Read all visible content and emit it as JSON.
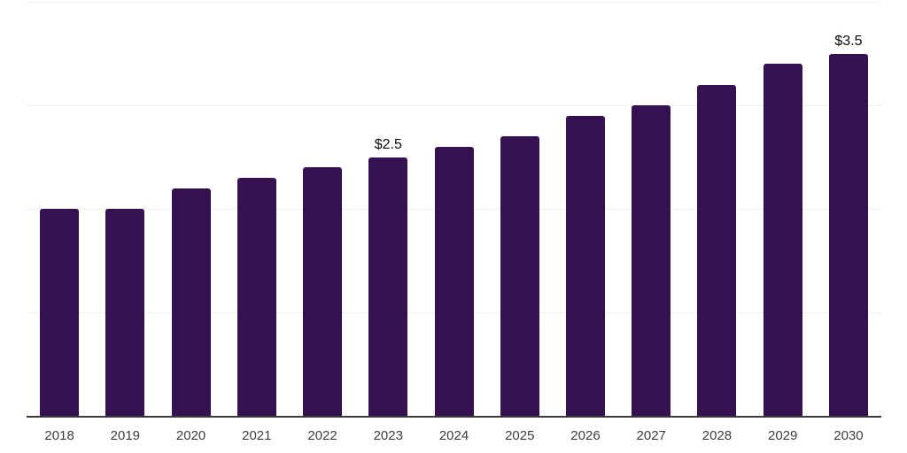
{
  "chart_data": {
    "type": "bar",
    "title": "",
    "xlabel": "",
    "ylabel": "",
    "categories": [
      "2018",
      "2019",
      "2020",
      "2021",
      "2022",
      "2023",
      "2024",
      "2025",
      "2026",
      "2027",
      "2028",
      "2029",
      "2030"
    ],
    "values": [
      2.0,
      2.0,
      2.2,
      2.3,
      2.4,
      2.5,
      2.6,
      2.7,
      2.9,
      3.0,
      3.2,
      3.4,
      3.5
    ],
    "data_labels": [
      {
        "category": "2023",
        "text": "$2.5"
      },
      {
        "category": "2030",
        "text": "$3.5"
      }
    ],
    "ylim": [
      0,
      4
    ],
    "gridline_values": [
      1,
      2,
      3,
      4
    ],
    "grid": "horizontal",
    "legend": "none",
    "y_axis_labels_visible": false,
    "colors": {
      "bar": "#351150",
      "gridline": "#f0f0f0",
      "axis_line": "#3a3a3a",
      "x_label": "#3d3d3d",
      "value_label": "#0a0a0a",
      "background": "#ffffff"
    }
  }
}
